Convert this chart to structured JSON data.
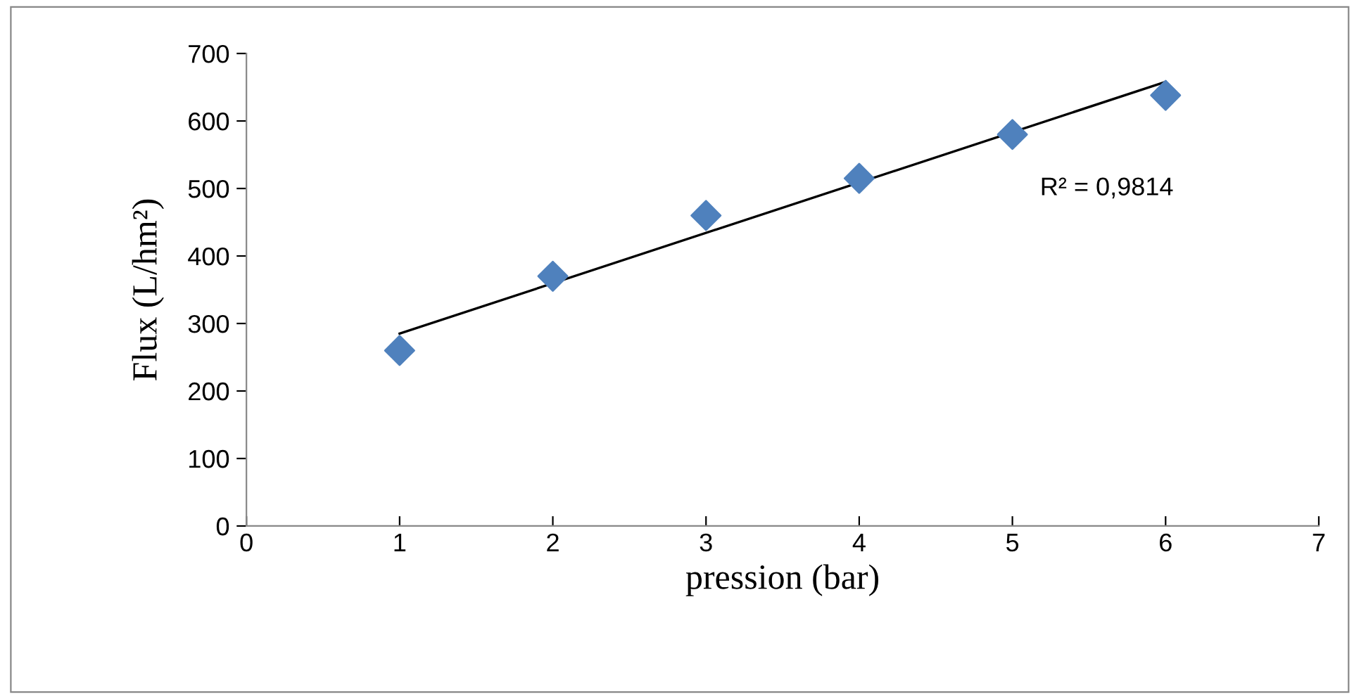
{
  "chart_data": {
    "type": "scatter",
    "xlabel": "pression (bar)",
    "ylabel": "Flux (L/hm²)",
    "x": [
      1,
      2,
      3,
      4,
      5,
      6
    ],
    "series": [
      {
        "color": "#4f81bd",
        "marker": "diamond",
        "values": [
          260,
          370,
          460,
          515,
          580,
          638
        ]
      },
      {
        "type": "line",
        "color": "#000000",
        "marker": "none",
        "x": [
          1,
          6
        ],
        "values": [
          285,
          658
        ]
      }
    ],
    "xlim": [
      0,
      7
    ],
    "xticks": [
      0,
      1,
      2,
      3,
      4,
      5,
      6,
      7
    ],
    "ylim": [
      0,
      700
    ],
    "yticks": [
      0,
      100,
      200,
      300,
      400,
      500,
      600,
      700
    ],
    "grid": false,
    "annotations": [
      "R² = 0,9814"
    ]
  }
}
